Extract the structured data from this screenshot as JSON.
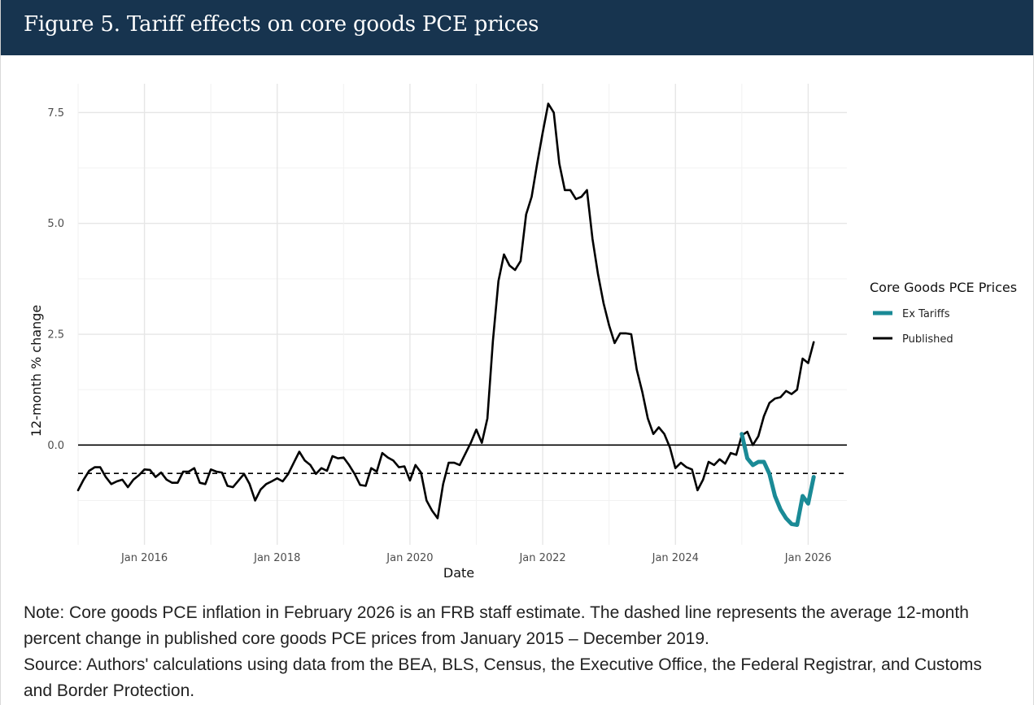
{
  "figure": {
    "title": "Figure 5. Tariff effects on core goods PCE prices",
    "note": "Note: Core goods PCE inflation in February 2026 is an FRB staff estimate. The dashed line represents the average 12-month percent change in published core goods PCE prices from January 2015 – December 2019.",
    "source": "Source: Authors' calculations using data from the BEA, BLS, Census, the Executive Office, the Federal Registrar, and Customs and Border Protection."
  },
  "chart_data": {
    "type": "line",
    "xlabel": "Date",
    "ylabel": "12-month % change",
    "xlim": [
      "2015-01",
      "2026-08"
    ],
    "ylim": [
      -2.25,
      8.15
    ],
    "y_ticks": [
      0.0,
      2.5,
      5.0,
      7.5
    ],
    "y_tick_labels": [
      "0.0",
      "2.5",
      "5.0",
      "7.5"
    ],
    "x_ticks": [
      "2016-01",
      "2018-01",
      "2020-01",
      "2022-01",
      "2024-01",
      "2026-01"
    ],
    "x_tick_labels": [
      "Jan 2016",
      "Jan 2018",
      "Jan 2020",
      "Jan 2022",
      "Jan 2024",
      "Jan 2026"
    ],
    "grid": true,
    "zero_line": 0.0,
    "reference_line": -0.64,
    "legend": {
      "title": "Core Goods PCE Prices",
      "position": "right",
      "items": [
        {
          "label": "Ex Tariffs",
          "color": "#1a8a96"
        },
        {
          "label": "Published",
          "color": "#000000"
        }
      ]
    },
    "series": [
      {
        "name": "Published",
        "color": "#000000",
        "x": [
          "2015-01",
          "2015-02",
          "2015-03",
          "2015-04",
          "2015-05",
          "2015-06",
          "2015-07",
          "2015-08",
          "2015-09",
          "2015-10",
          "2015-11",
          "2015-12",
          "2016-01",
          "2016-02",
          "2016-03",
          "2016-04",
          "2016-05",
          "2016-06",
          "2016-07",
          "2016-08",
          "2016-09",
          "2016-10",
          "2016-11",
          "2016-12",
          "2017-01",
          "2017-02",
          "2017-03",
          "2017-04",
          "2017-05",
          "2017-06",
          "2017-07",
          "2017-08",
          "2017-09",
          "2017-10",
          "2017-11",
          "2017-12",
          "2018-01",
          "2018-02",
          "2018-03",
          "2018-04",
          "2018-05",
          "2018-06",
          "2018-07",
          "2018-08",
          "2018-09",
          "2018-10",
          "2018-11",
          "2018-12",
          "2019-01",
          "2019-02",
          "2019-03",
          "2019-04",
          "2019-05",
          "2019-06",
          "2019-07",
          "2019-08",
          "2019-09",
          "2019-10",
          "2019-11",
          "2019-12",
          "2020-01",
          "2020-02",
          "2020-03",
          "2020-04",
          "2020-05",
          "2020-06",
          "2020-07",
          "2020-08",
          "2020-09",
          "2020-10",
          "2020-11",
          "2020-12",
          "2021-01",
          "2021-02",
          "2021-03",
          "2021-04",
          "2021-05",
          "2021-06",
          "2021-07",
          "2021-08",
          "2021-09",
          "2021-10",
          "2021-11",
          "2021-12",
          "2022-01",
          "2022-02",
          "2022-03",
          "2022-04",
          "2022-05",
          "2022-06",
          "2022-07",
          "2022-08",
          "2022-09",
          "2022-10",
          "2022-11",
          "2022-12",
          "2023-01",
          "2023-02",
          "2023-03",
          "2023-04",
          "2023-05",
          "2023-06",
          "2023-07",
          "2023-08",
          "2023-09",
          "2023-10",
          "2023-11",
          "2023-12",
          "2024-01",
          "2024-02",
          "2024-03",
          "2024-04",
          "2024-05",
          "2024-06",
          "2024-07",
          "2024-08",
          "2024-09",
          "2024-10",
          "2024-11",
          "2024-12",
          "2025-01",
          "2025-02",
          "2025-03",
          "2025-04",
          "2025-05",
          "2025-06",
          "2025-07",
          "2025-08",
          "2025-09",
          "2025-10",
          "2025-11",
          "2025-12",
          "2026-01",
          "2026-02"
        ],
        "values": [
          -1.02,
          -0.78,
          -0.58,
          -0.5,
          -0.5,
          -0.72,
          -0.88,
          -0.82,
          -0.78,
          -0.95,
          -0.78,
          -0.68,
          -0.55,
          -0.56,
          -0.72,
          -0.62,
          -0.78,
          -0.85,
          -0.85,
          -0.6,
          -0.6,
          -0.52,
          -0.85,
          -0.88,
          -0.55,
          -0.6,
          -0.62,
          -0.92,
          -0.95,
          -0.8,
          -0.65,
          -0.88,
          -1.25,
          -1.0,
          -0.88,
          -0.82,
          -0.75,
          -0.82,
          -0.65,
          -0.4,
          -0.15,
          -0.35,
          -0.45,
          -0.65,
          -0.52,
          -0.58,
          -0.25,
          -0.3,
          -0.28,
          -0.45,
          -0.65,
          -0.9,
          -0.92,
          -0.52,
          -0.6,
          -0.18,
          -0.28,
          -0.35,
          -0.5,
          -0.48,
          -0.8,
          -0.45,
          -0.62,
          -1.25,
          -1.48,
          -1.65,
          -0.88,
          -0.4,
          -0.4,
          -0.45,
          -0.2,
          0.05,
          0.35,
          0.05,
          0.6,
          2.35,
          3.7,
          4.3,
          4.05,
          3.95,
          4.15,
          5.2,
          5.6,
          6.35,
          7.05,
          7.7,
          7.5,
          6.35,
          5.75,
          5.75,
          5.55,
          5.6,
          5.75,
          4.65,
          3.85,
          3.2,
          2.7,
          2.3,
          2.52,
          2.52,
          2.5,
          1.7,
          1.2,
          0.6,
          0.25,
          0.4,
          0.25,
          -0.05,
          -0.52,
          -0.4,
          -0.5,
          -0.55,
          -1.02,
          -0.78,
          -0.38,
          -0.45,
          -0.32,
          -0.42,
          -0.18,
          -0.22,
          0.22,
          0.3,
          0.0,
          0.2,
          0.65,
          0.95,
          1.05,
          1.08,
          1.22,
          1.15,
          1.25,
          1.95,
          1.85,
          2.32
        ]
      },
      {
        "name": "Ex Tariffs",
        "color": "#1a8a96",
        "x": [
          "2025-01",
          "2025-02",
          "2025-03",
          "2025-04",
          "2025-05",
          "2025-06",
          "2025-07",
          "2025-08",
          "2025-09",
          "2025-10",
          "2025-11",
          "2025-12",
          "2026-01",
          "2026-02"
        ],
        "values": [
          0.25,
          -0.3,
          -0.45,
          -0.38,
          -0.38,
          -0.65,
          -1.15,
          -1.45,
          -1.65,
          -1.78,
          -1.8,
          -1.15,
          -1.32,
          -0.72
        ]
      }
    ]
  }
}
